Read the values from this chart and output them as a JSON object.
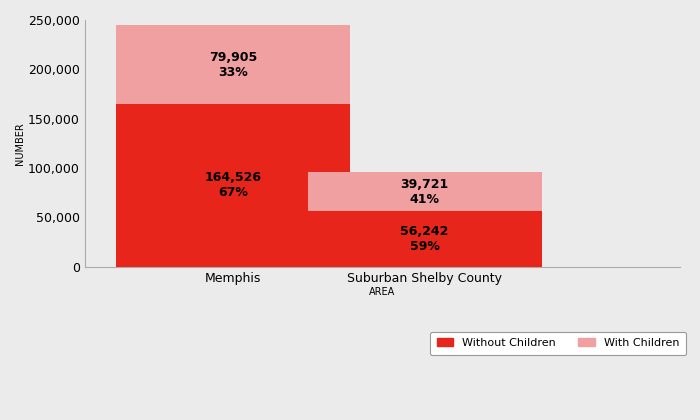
{
  "categories": [
    "Memphis",
    "Suburban Shelby County"
  ],
  "without_children": [
    164526,
    56242
  ],
  "with_children": [
    79905,
    39721
  ],
  "without_pct": [
    "67%",
    "59%"
  ],
  "with_pct": [
    "33%",
    "41%"
  ],
  "without_label": [
    "164,526",
    "56,242"
  ],
  "with_label": [
    "79,905",
    "39,721"
  ],
  "color_without": "#e8251a",
  "color_with": "#f0a0a0",
  "ylim": [
    0,
    250000
  ],
  "yticks": [
    0,
    50000,
    100000,
    150000,
    200000,
    250000
  ],
  "ylabel": "NUMBER",
  "xlabel": "AREA",
  "legend_without": "Without Children",
  "legend_with": "With Children",
  "bar_width": 0.55,
  "background_color": "#ebebeb",
  "plot_bg_color": "#ebebeb",
  "annotation_fontsize": 9,
  "annotation_fontweight": "bold"
}
